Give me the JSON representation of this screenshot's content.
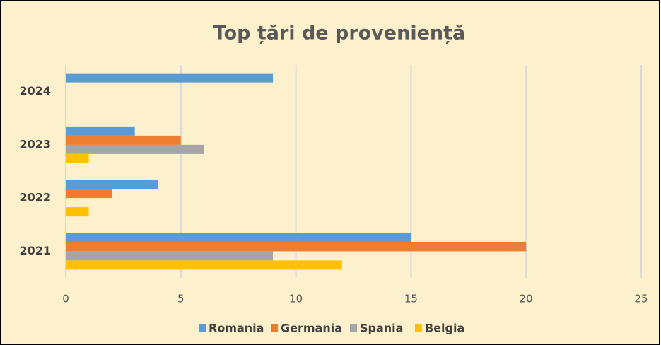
{
  "chart_data": {
    "type": "barh",
    "title": "Top țări de proveniență",
    "categories": [
      "2021",
      "2022",
      "2023",
      "2024"
    ],
    "series": [
      {
        "name": "Romania",
        "color": "#5b9bd5",
        "values": [
          15,
          4,
          3,
          9
        ]
      },
      {
        "name": "Germania",
        "color": "#ed7d31",
        "values": [
          20,
          2,
          5,
          null
        ]
      },
      {
        "name": "Spania",
        "color": "#a5a5a5",
        "values": [
          9,
          null,
          6,
          null
        ]
      },
      {
        "name": "Belgia",
        "color": "#ffc000",
        "values": [
          12,
          1,
          1,
          null
        ]
      }
    ],
    "xlim": [
      0,
      25
    ],
    "xticks": [
      0,
      5,
      10,
      15,
      20,
      25
    ],
    "grid": true,
    "legend": "bottom"
  }
}
